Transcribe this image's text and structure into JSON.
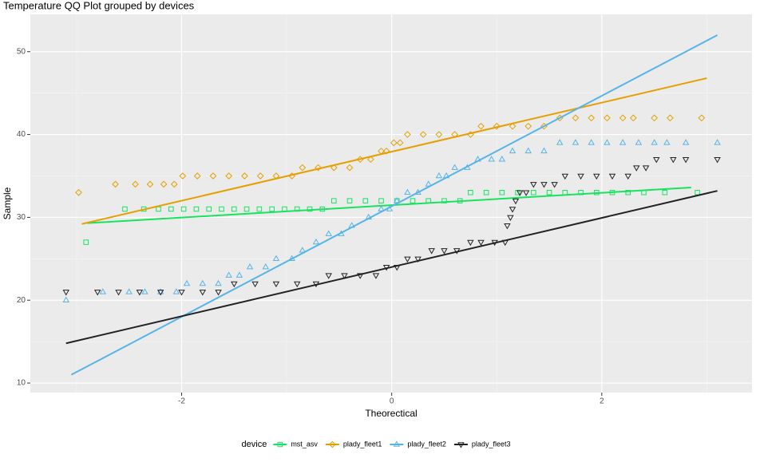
{
  "chart_data": {
    "type": "qq",
    "title": "Temperature QQ Plot grouped by devices",
    "x_label": "Theorectical",
    "y_label": "Sample",
    "legend_title": "device",
    "legend_position": "bottom",
    "xlim": [
      -3.44,
      3.43
    ],
    "ylim": [
      8.85,
      54.5
    ],
    "xticks": [
      -2,
      0,
      2
    ],
    "yticks": [
      10,
      20,
      30,
      40,
      50
    ],
    "x_minor": [
      -3,
      -1,
      1,
      3
    ],
    "y_minor": [
      15,
      25,
      35,
      45
    ],
    "grid": true,
    "series": [
      {
        "name": "mst_asv",
        "color": "#17e35f",
        "shape": "square",
        "x": [
          -2.91,
          -2.54,
          -2.36,
          -2.22,
          -2.1,
          -1.98,
          -1.86,
          -1.74,
          -1.62,
          -1.5,
          -1.38,
          -1.26,
          -1.14,
          -1.02,
          -0.9,
          -0.78,
          -0.66,
          -0.55,
          -0.4,
          -0.25,
          -0.1,
          0.05,
          0.2,
          0.35,
          0.5,
          0.65,
          0.75,
          0.9,
          1.05,
          1.2,
          1.35,
          1.5,
          1.65,
          1.8,
          1.95,
          2.1,
          2.25,
          2.4,
          2.6,
          2.91
        ],
        "values": [
          27,
          31,
          31,
          31,
          31,
          31,
          31,
          31,
          31,
          31,
          31,
          31,
          31,
          31,
          31,
          31,
          31,
          32,
          32,
          32,
          32,
          32,
          32,
          32,
          32,
          32,
          33,
          33,
          33,
          33,
          33,
          33,
          33,
          33,
          33,
          33,
          33,
          33,
          33,
          33
        ],
        "line_x": [
          -2.9,
          2.85
        ],
        "line_y": [
          29.3,
          33.6
        ]
      },
      {
        "name": "plady_fleet1",
        "color": "#e69f00",
        "shape": "diamond",
        "x": [
          -2.98,
          -2.63,
          -2.44,
          -2.3,
          -2.17,
          -2.07,
          -1.99,
          -1.85,
          -1.7,
          -1.55,
          -1.4,
          -1.25,
          -1.1,
          -0.95,
          -0.85,
          -0.7,
          -0.55,
          -0.4,
          -0.3,
          -0.2,
          -0.1,
          -0.05,
          0.02,
          0.08,
          0.15,
          0.3,
          0.45,
          0.6,
          0.75,
          0.85,
          1.0,
          1.15,
          1.3,
          1.45,
          1.6,
          1.75,
          1.9,
          2.05,
          2.2,
          2.3,
          2.5,
          2.65,
          2.95
        ],
        "values": [
          33,
          34,
          34,
          34,
          34,
          34,
          35,
          35,
          35,
          35,
          35,
          35,
          35,
          35,
          36,
          36,
          36,
          36,
          37,
          37,
          38,
          38,
          39,
          39,
          40,
          40,
          40,
          40,
          40,
          41,
          41,
          41,
          41,
          41,
          42,
          42,
          42,
          42,
          42,
          42,
          42,
          42,
          42
        ],
        "line_x": [
          -2.95,
          3.0
        ],
        "line_y": [
          29.2,
          46.8
        ]
      },
      {
        "name": "plady_fleet2",
        "color": "#56b4e9",
        "shape": "triangle",
        "x": [
          -3.1,
          -2.75,
          -2.5,
          -2.35,
          -2.2,
          -2.05,
          -1.95,
          -1.8,
          -1.65,
          -1.55,
          -1.45,
          -1.35,
          -1.2,
          -1.1,
          -0.95,
          -0.85,
          -0.72,
          -0.6,
          -0.48,
          -0.38,
          -0.22,
          -0.1,
          -0.02,
          0.05,
          0.15,
          0.25,
          0.35,
          0.45,
          0.52,
          0.6,
          0.72,
          0.82,
          0.95,
          1.05,
          1.15,
          1.3,
          1.45,
          1.6,
          1.75,
          1.9,
          2.05,
          2.2,
          2.35,
          2.5,
          2.62,
          2.8,
          3.1
        ],
        "values": [
          20,
          21,
          21,
          21,
          21,
          21,
          22,
          22,
          22,
          23,
          23,
          24,
          24,
          25,
          25,
          26,
          27,
          28,
          28,
          29,
          30,
          31,
          31,
          32,
          33,
          33,
          34,
          35,
          35,
          36,
          36,
          37,
          37,
          37,
          38,
          38,
          38,
          39,
          39,
          39,
          39,
          39,
          39,
          39,
          39,
          39,
          39
        ],
        "line_x": [
          -3.05,
          3.1
        ],
        "line_y": [
          11,
          52
        ]
      },
      {
        "name": "plady_fleet3",
        "color": "#222222",
        "shape": "triangle-down",
        "x": [
          -3.1,
          -2.8,
          -2.6,
          -2.4,
          -2.2,
          -2.0,
          -1.8,
          -1.65,
          -1.5,
          -1.3,
          -1.1,
          -0.9,
          -0.72,
          -0.6,
          -0.45,
          -0.3,
          -0.15,
          -0.05,
          0.05,
          0.15,
          0.25,
          0.38,
          0.5,
          0.62,
          0.75,
          0.85,
          0.98,
          1.08,
          1.1,
          1.13,
          1.15,
          1.18,
          1.22,
          1.28,
          1.35,
          1.45,
          1.55,
          1.65,
          1.8,
          1.95,
          2.1,
          2.25,
          2.33,
          2.42,
          2.52,
          2.68,
          2.8,
          3.1
        ],
        "values": [
          21,
          21,
          21,
          21,
          21,
          21,
          21,
          21,
          22,
          22,
          22,
          22,
          22,
          23,
          23,
          23,
          23,
          24,
          24,
          25,
          25,
          26,
          26,
          26,
          27,
          27,
          27,
          27,
          29,
          30,
          31,
          32,
          33,
          33,
          34,
          34,
          34,
          35,
          35,
          35,
          35,
          35,
          36,
          36,
          37,
          37,
          37,
          37
        ],
        "line_x": [
          -3.1,
          3.1
        ],
        "line_y": [
          14.8,
          33.2
        ]
      }
    ]
  }
}
